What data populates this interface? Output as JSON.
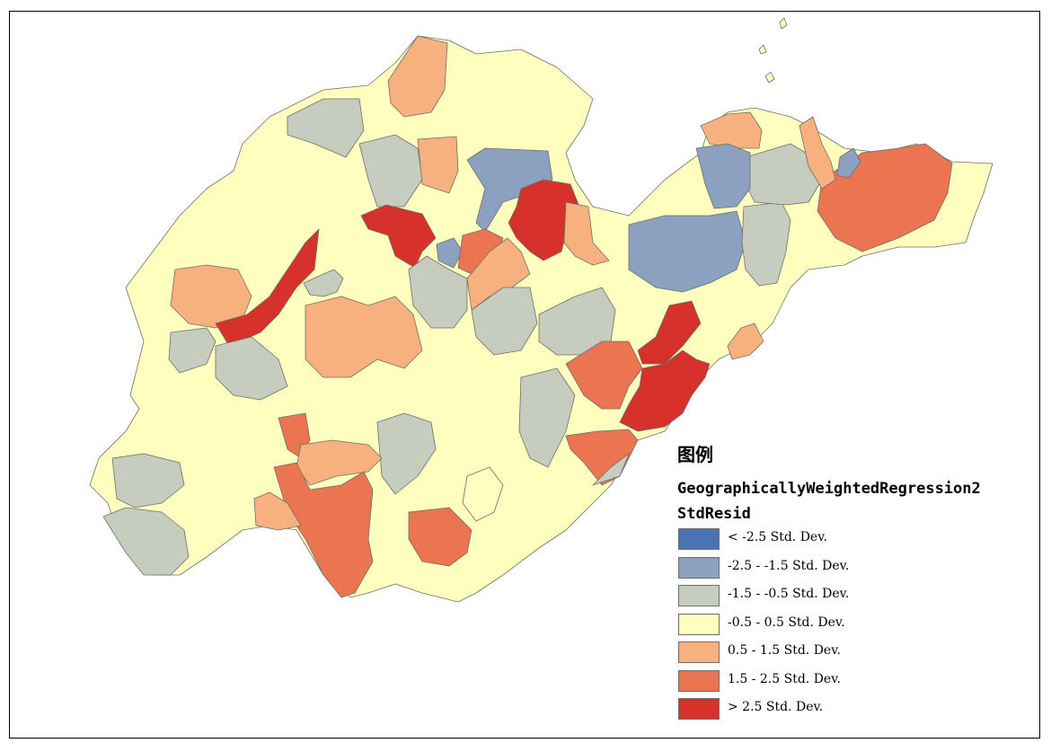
{
  "legend": {
    "title": "图例",
    "layer_name": "GeographicallyWeightedRegression2",
    "field_name": "StdResid",
    "classes": [
      {
        "label": "< -2.5 Std. Dev.",
        "color": "#4a72b4"
      },
      {
        "label": "-2.5 - -1.5 Std. Dev.",
        "color": "#8ca0c0"
      },
      {
        "label": "-1.5 - -0.5 Std. Dev.",
        "color": "#c6cdbe"
      },
      {
        "label": "-0.5 - 0.5 Std. Dev.",
        "color": "#feffbe"
      },
      {
        "label": "0.5 - 1.5 Std. Dev.",
        "color": "#f7b17f"
      },
      {
        "label": "1.5 - 2.5 Std. Dev.",
        "color": "#eb7551"
      },
      {
        "label": "> 2.5 Std. Dev.",
        "color": "#d6312b"
      }
    ]
  },
  "map": {
    "outline_color": "#6e6e6e",
    "regions": [
      {
        "name": "yellow-base",
        "cls": 3
      },
      {
        "name": "northwest-gray",
        "cls": 2
      },
      {
        "name": "north-gray",
        "cls": 2
      },
      {
        "name": "north-orange",
        "cls": 4
      },
      {
        "name": "north-orange-2",
        "cls": 4
      },
      {
        "name": "north-blue",
        "cls": 1
      },
      {
        "name": "jinan-red",
        "cls": 6
      },
      {
        "name": "center-red",
        "cls": 6
      },
      {
        "name": "center-blue",
        "cls": 1
      },
      {
        "name": "center-coral",
        "cls": 5
      },
      {
        "name": "center-orange",
        "cls": 4
      },
      {
        "name": "center-orange-2",
        "cls": 4
      },
      {
        "name": "central-gray",
        "cls": 2
      },
      {
        "name": "central-gray-2",
        "cls": 2
      },
      {
        "name": "central-gray-3",
        "cls": 2
      },
      {
        "name": "west-orange",
        "cls": 4
      },
      {
        "name": "west-orange-2",
        "cls": 4
      },
      {
        "name": "west-red",
        "cls": 6
      },
      {
        "name": "west-gray",
        "cls": 2
      },
      {
        "name": "west-gray-2",
        "cls": 2
      },
      {
        "name": "east-gray",
        "cls": 2
      },
      {
        "name": "east-blue",
        "cls": 1
      },
      {
        "name": "east-gray-2",
        "cls": 2
      },
      {
        "name": "east-tip-gray",
        "cls": 2
      },
      {
        "name": "yantai-coral",
        "cls": 5
      },
      {
        "name": "yantai-orange",
        "cls": 4
      },
      {
        "name": "weihai-blue",
        "cls": 1
      },
      {
        "name": "weihai-orange",
        "cls": 4
      },
      {
        "name": "qingdao-blue",
        "cls": 1
      },
      {
        "name": "qingdao-red",
        "cls": 6
      },
      {
        "name": "qingdao-red-2",
        "cls": 6
      },
      {
        "name": "south-orange",
        "cls": 4
      },
      {
        "name": "south-coral",
        "cls": 5
      },
      {
        "name": "rizhao-coral",
        "cls": 5
      },
      {
        "name": "south-gray",
        "cls": 2
      },
      {
        "name": "south-gray-2",
        "cls": 2
      },
      {
        "name": "south-gray-3",
        "cls": 2
      },
      {
        "name": "linyi-coral",
        "cls": 5
      },
      {
        "name": "linyi-coral-2",
        "cls": 5
      },
      {
        "name": "linyi-orange",
        "cls": 4
      },
      {
        "name": "linyi-coral-3",
        "cls": 5
      },
      {
        "name": "southwest-orange",
        "cls": 4
      },
      {
        "name": "southwest-gray",
        "cls": 2
      },
      {
        "name": "southeast-gray",
        "cls": 2
      }
    ]
  }
}
